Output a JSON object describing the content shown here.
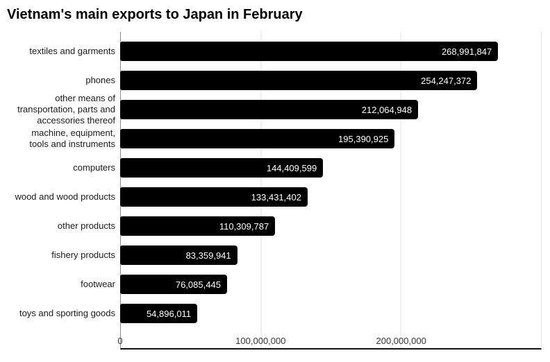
{
  "chart_data": {
    "type": "bar",
    "orientation": "horizontal",
    "title": "Vietnam's main exports to Japan in February",
    "xlabel": "",
    "ylabel": "",
    "xlim": [
      0,
      300000000
    ],
    "grid": true,
    "legend": "none",
    "bar_color": "#000000",
    "value_label_color": "#ffffff",
    "categories": [
      "textiles and garments",
      "phones",
      "other means of\ntransportation, parts and\naccessories thereof",
      "machine, equipment,\ntools and instruments",
      "computers",
      "wood and wood products",
      "other products",
      "fishery products",
      "footwear",
      "toys and sporting goods"
    ],
    "values": [
      268991847,
      254247372,
      212064948,
      195390925,
      144409599,
      133431402,
      110309787,
      83359941,
      76085445,
      54896011
    ],
    "value_labels": [
      "268,991,847",
      "254,247,372",
      "212,064,948",
      "195,390,925",
      "144,409,599",
      "133,431,402",
      "110,309,787",
      "83,359,941",
      "76,085,445",
      "54,896,011"
    ],
    "x_ticks": [
      {
        "label": "0",
        "value": 0
      },
      {
        "label": "100,000,000",
        "value": 100000000
      },
      {
        "label": "200,000,000",
        "value": 200000000
      }
    ]
  }
}
